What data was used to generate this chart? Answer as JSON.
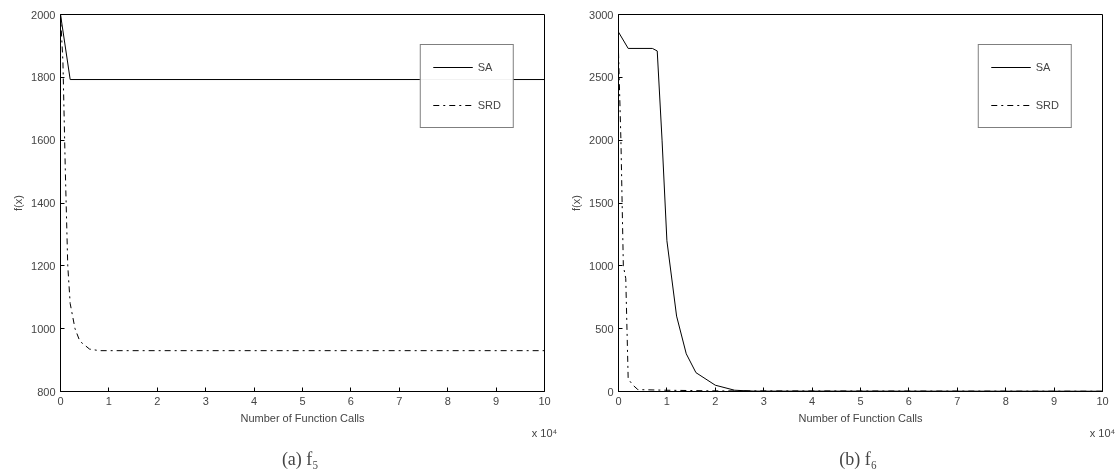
{
  "chart_data": [
    {
      "type": "line",
      "title": "(a)  f₅",
      "xlabel": "Number of Function Calls",
      "ylabel": "f(x)",
      "annotations": [
        "x 10⁴"
      ],
      "xlim": [
        0,
        10
      ],
      "xticks": [
        0,
        1,
        2,
        3,
        4,
        5,
        6,
        7,
        8,
        9,
        10
      ],
      "ylim": [
        800,
        2000
      ],
      "yticks": [
        800,
        1000,
        1200,
        1400,
        1600,
        1800,
        2000
      ],
      "grid": false,
      "legend": "top right",
      "series": [
        {
          "name": "SA",
          "color": "#000000",
          "line_style": "solid",
          "x": [
            0,
            0.2,
            10
          ],
          "values": [
            2000,
            1793,
            1793
          ]
        },
        {
          "name": "SRD",
          "color": "#000000",
          "line_style": "dashdot",
          "x": [
            0,
            0.05,
            0.1,
            0.15,
            0.2,
            0.3,
            0.4,
            0.6,
            0.8,
            10
          ],
          "values": [
            2000,
            1850,
            1500,
            1200,
            1080,
            1000,
            960,
            935,
            930,
            930
          ]
        }
      ]
    },
    {
      "type": "line",
      "title": "(b)  f₆",
      "xlabel": "Number of Function Calls",
      "ylabel": "f(x)",
      "annotations": [
        "x 10⁴"
      ],
      "xlim": [
        0,
        10
      ],
      "xticks": [
        0,
        1,
        2,
        3,
        4,
        5,
        6,
        7,
        8,
        9,
        10
      ],
      "ylim": [
        0,
        3000
      ],
      "yticks": [
        0,
        500,
        1000,
        1500,
        2000,
        2500,
        3000
      ],
      "grid": false,
      "legend": "top right",
      "series": [
        {
          "name": "SA",
          "color": "#000000",
          "line_style": "solid",
          "x": [
            0,
            0.2,
            0.7,
            0.8,
            0.9,
            1.0,
            1.2,
            1.4,
            1.6,
            2.0,
            2.4,
            2.8,
            10
          ],
          "values": [
            2860,
            2730,
            2730,
            2710,
            2000,
            1200,
            600,
            300,
            150,
            50,
            10,
            3,
            2
          ]
        },
        {
          "name": "SRD",
          "color": "#000000",
          "line_style": "dashdot",
          "x": [
            0,
            0.05,
            0.1,
            0.15,
            0.2,
            0.3,
            0.4,
            1,
            2,
            10
          ],
          "values": [
            2700,
            2000,
            1000,
            900,
            100,
            50,
            15,
            10,
            5,
            2
          ]
        }
      ]
    }
  ]
}
